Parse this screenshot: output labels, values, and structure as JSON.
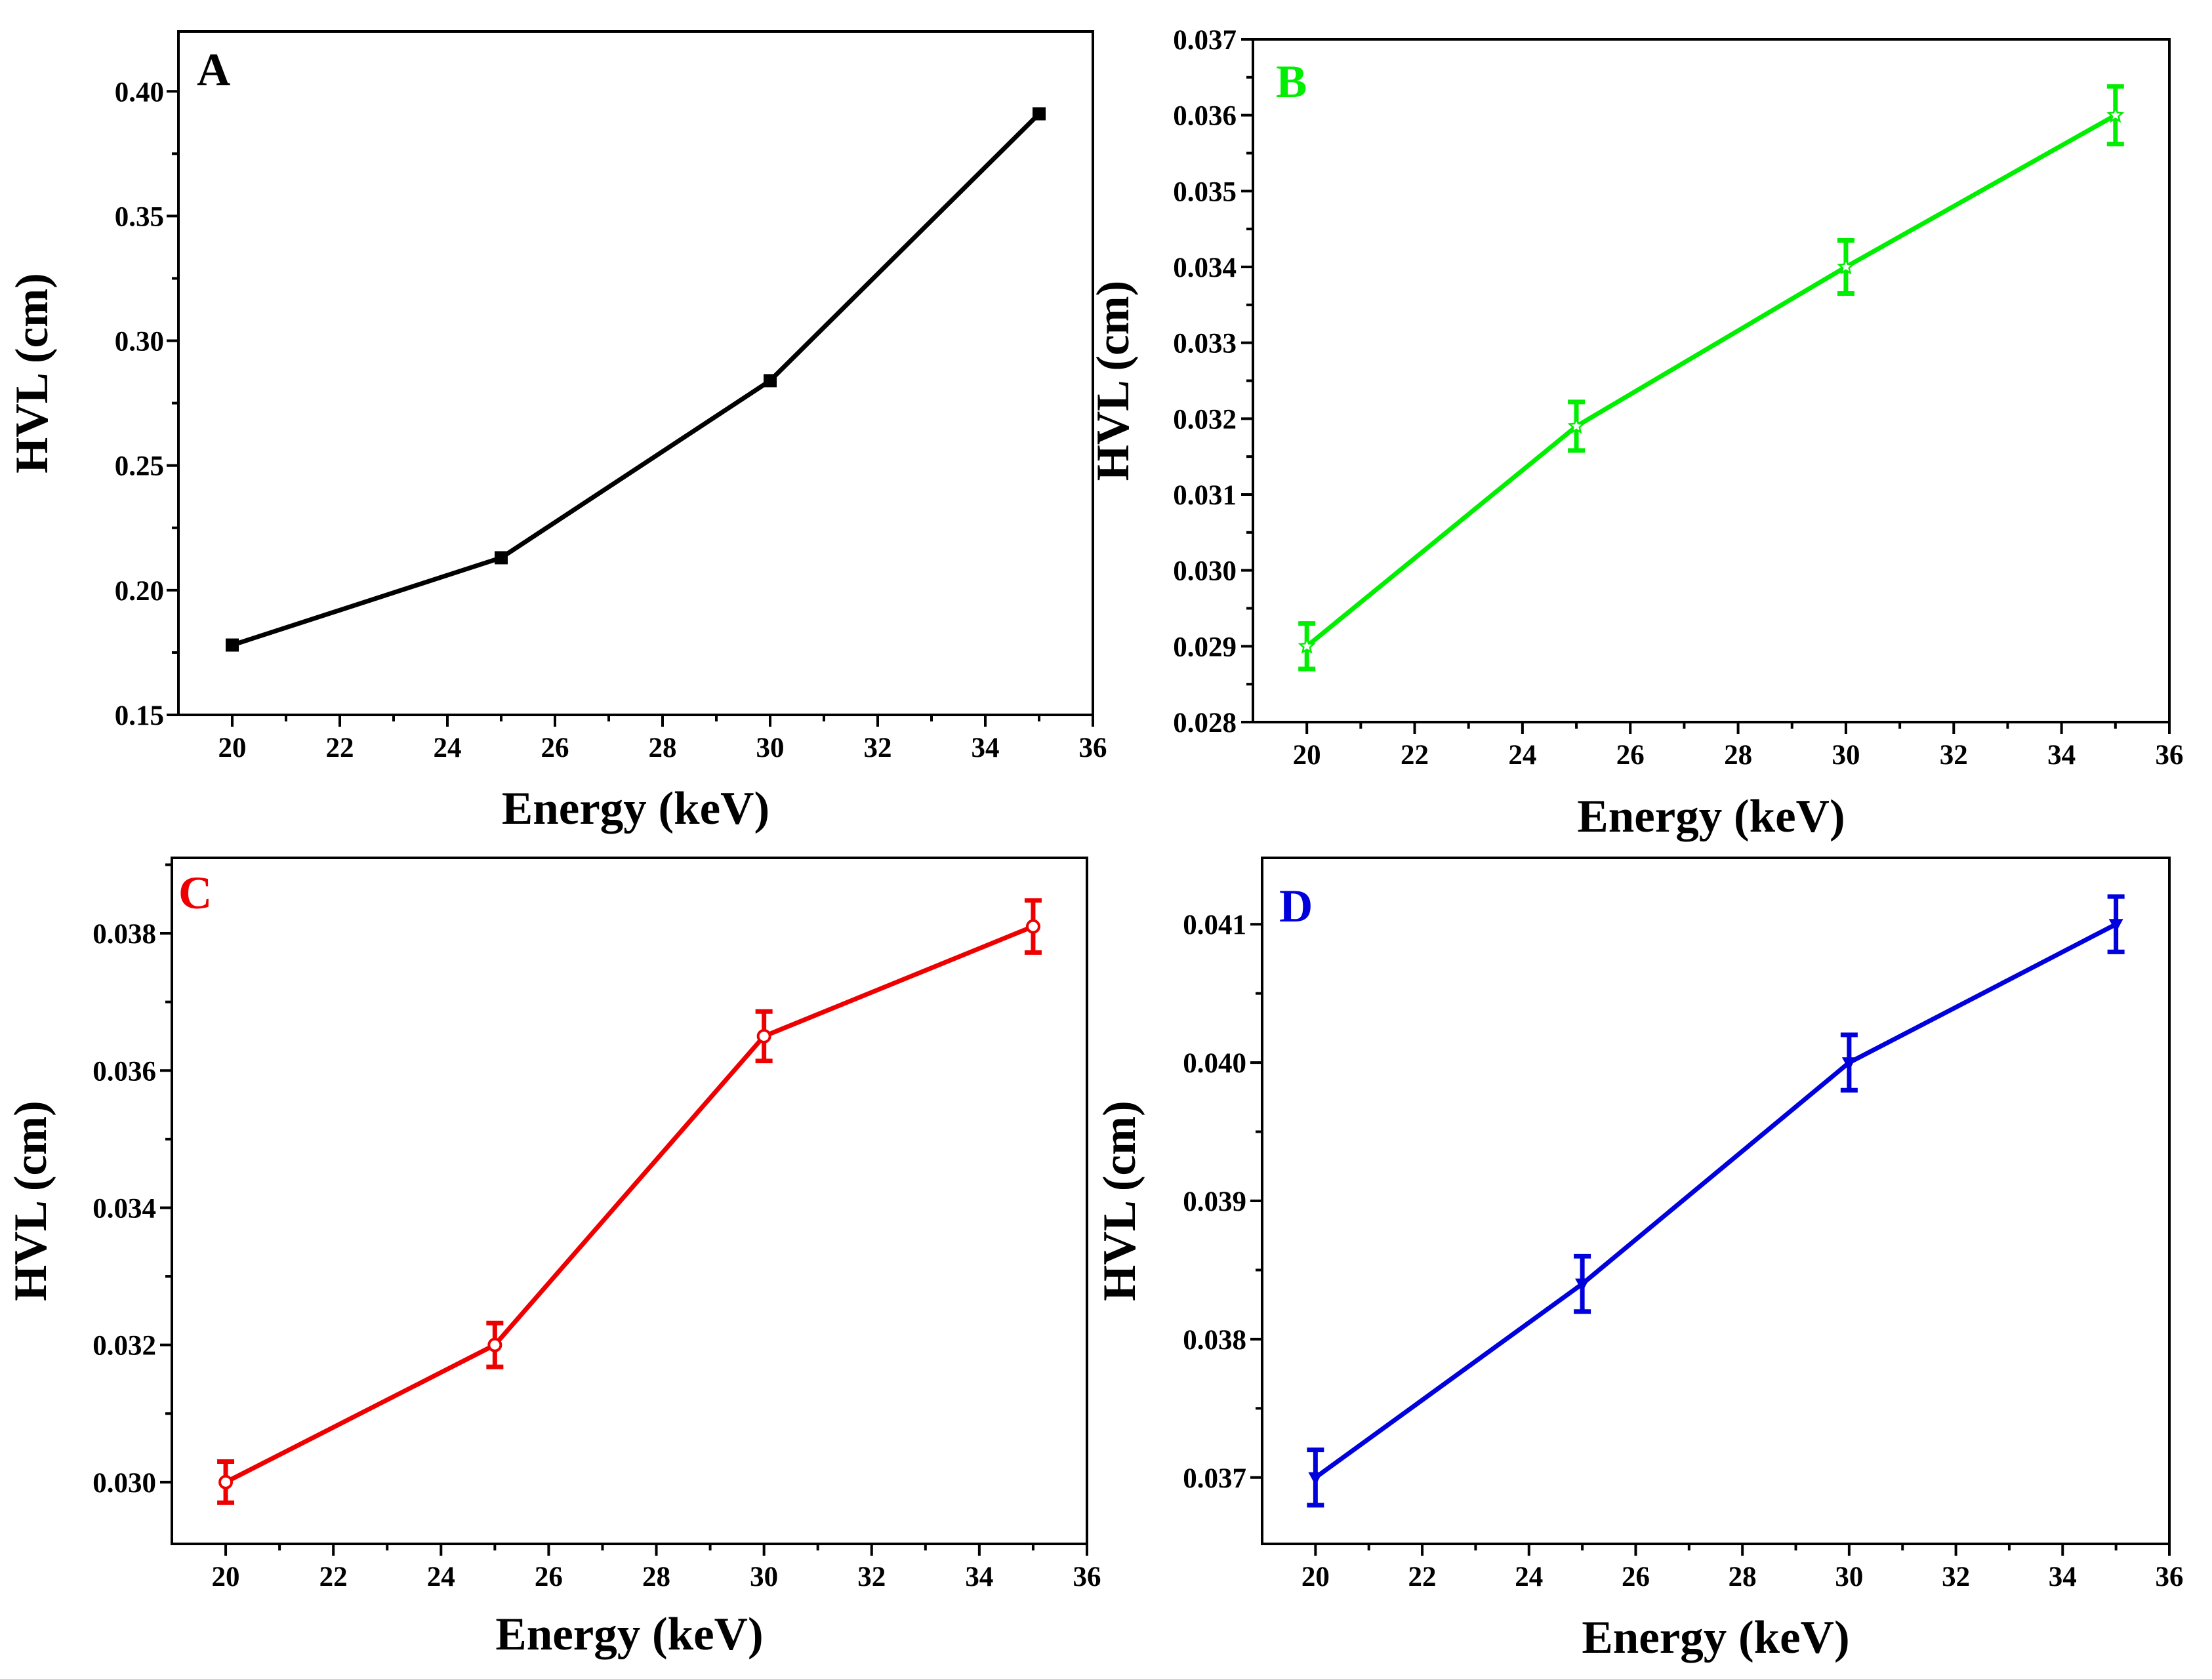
{
  "chart_data": [
    {
      "type": "line",
      "panel_label": "A",
      "color": "#000000",
      "marker": "square",
      "xlabel": "Energy (keV)",
      "ylabel": "HVL (cm)",
      "xlim": [
        19,
        36
      ],
      "ylim": [
        0.15,
        0.424
      ],
      "xticks": [
        20,
        22,
        24,
        26,
        28,
        30,
        32,
        34,
        36
      ],
      "yticks": [
        0.15,
        0.2,
        0.25,
        0.3,
        0.35,
        0.4
      ],
      "ytick_labels": [
        "0.15",
        "0.20",
        "0.25",
        "0.30",
        "0.35",
        "0.40"
      ],
      "x": [
        20,
        25,
        30,
        35
      ],
      "y": [
        0.178,
        0.213,
        0.284,
        0.391
      ],
      "err": [
        0,
        0,
        0,
        0
      ]
    },
    {
      "type": "line",
      "panel_label": "B",
      "color": "#00ee00",
      "marker": "star",
      "xlabel": "Energy (keV)",
      "ylabel": "HVL (cm)",
      "xlim": [
        19,
        36
      ],
      "ylim": [
        0.028,
        0.037
      ],
      "xticks": [
        20,
        22,
        24,
        26,
        28,
        30,
        32,
        34,
        36
      ],
      "yticks": [
        0.028,
        0.029,
        0.03,
        0.031,
        0.032,
        0.033,
        0.034,
        0.035,
        0.036,
        0.037
      ],
      "ytick_labels": [
        "0.028",
        "0.029",
        "0.030",
        "0.031",
        "0.032",
        "0.033",
        "0.034",
        "0.035",
        "0.036",
        "0.037"
      ],
      "x": [
        20,
        25,
        30,
        35
      ],
      "y": [
        0.029,
        0.0319,
        0.034,
        0.036
      ],
      "err": [
        0.0003,
        0.00032,
        0.00035,
        0.00038
      ]
    },
    {
      "type": "line",
      "panel_label": "C",
      "color": "#ee0000",
      "marker": "circle",
      "xlabel": "Energy (keV)",
      "ylabel": "HVL (cm)",
      "xlim": [
        19,
        36
      ],
      "ylim": [
        0.0291,
        0.0391
      ],
      "xticks": [
        20,
        22,
        24,
        26,
        28,
        30,
        32,
        34,
        36
      ],
      "yticks": [
        0.03,
        0.032,
        0.034,
        0.036,
        0.038
      ],
      "ytick_labels": [
        "0.030",
        "0.032",
        "0.034",
        "0.036",
        "0.038"
      ],
      "x": [
        20,
        25,
        30,
        35
      ],
      "y": [
        0.03,
        0.032,
        0.0365,
        0.0381
      ],
      "err": [
        0.0003,
        0.00032,
        0.00036,
        0.00038
      ]
    },
    {
      "type": "line",
      "panel_label": "D",
      "color": "#0000dd",
      "marker": "triangle-down",
      "xlabel": "Energy (keV)",
      "ylabel": "HVL (cm)",
      "xlim": [
        19,
        36
      ],
      "ylim": [
        0.03652,
        0.04148
      ],
      "xticks": [
        20,
        22,
        24,
        26,
        28,
        30,
        32,
        34,
        36
      ],
      "yticks": [
        0.037,
        0.038,
        0.039,
        0.04,
        0.041
      ],
      "ytick_labels": [
        "0.037",
        "0.038",
        "0.039",
        "0.040",
        "0.041"
      ],
      "x": [
        20,
        25,
        30,
        35
      ],
      "y": [
        0.037,
        0.0384,
        0.04,
        0.041
      ],
      "err": [
        0.0002,
        0.0002,
        0.0002,
        0.0002
      ]
    }
  ]
}
